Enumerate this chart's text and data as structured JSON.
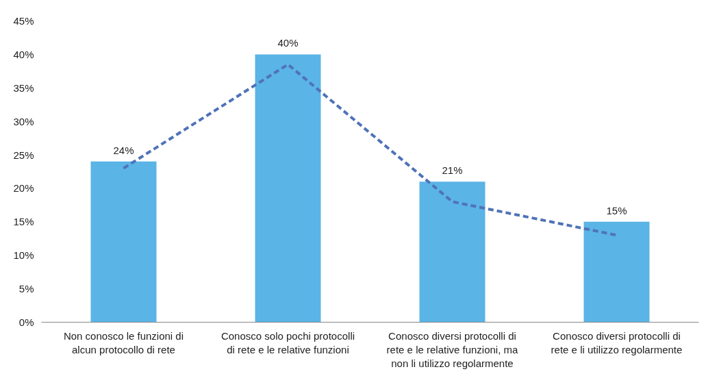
{
  "chart_data": {
    "type": "bar",
    "categories": [
      "Non conosco le funzioni di alcun protocollo di rete",
      "Conosco solo pochi protocolli di rete e le relative funzioni",
      "Conosco diversi protocolli di rete e le relative funzioni, ma non li utilizzo regolarmente",
      "Conosco diversi protocolli di rete e li utilizzo regolarmente"
    ],
    "series": [
      {
        "color": "#5ab4e5",
        "values": [
          24,
          40,
          21,
          15
        ],
        "value_labels": [
          "24%",
          "40%",
          "21%",
          "15%"
        ]
      },
      {
        "type": "line",
        "color": "#4f72b8",
        "line_style": "dashed",
        "values": [
          23,
          38.5,
          18,
          13
        ]
      }
    ],
    "ylim": [
      0,
      45
    ],
    "yticks": [
      {
        "value": 0,
        "label": "0%"
      },
      {
        "value": 5,
        "label": "5%"
      },
      {
        "value": 10,
        "label": "10%"
      },
      {
        "value": 15,
        "label": "15%"
      },
      {
        "value": 20,
        "label": "20%"
      },
      {
        "value": 25,
        "label": "25%"
      },
      {
        "value": 30,
        "label": "30%"
      },
      {
        "value": 35,
        "label": "35%"
      },
      {
        "value": 40,
        "label": "40%"
      },
      {
        "value": 45,
        "label": "45%"
      }
    ],
    "grid": false
  }
}
